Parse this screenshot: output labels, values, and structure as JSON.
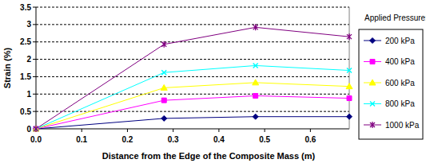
{
  "chart_data": {
    "type": "line",
    "legend_title": "Applied Pressure:",
    "xlabel": "Distance from the Edge of the Composite Mass (m)",
    "ylabel": "Strain (%)",
    "x": [
      0,
      0.28,
      0.48,
      0.685
    ],
    "series": [
      {
        "name": "200 kPa",
        "color": "#000080",
        "marker": "diamond",
        "line_style": "solid",
        "values": [
          0,
          0.3,
          0.35,
          0.35
        ]
      },
      {
        "name": "400 kPa",
        "color": "#ff00ff",
        "marker": "square",
        "line_style": "solid",
        "values": [
          0,
          0.82,
          0.95,
          0.88
        ]
      },
      {
        "name": "600 kPa",
        "color": "#ffff00",
        "marker": "triangle",
        "line_style": "solid",
        "values": [
          0,
          1.18,
          1.33,
          1.22
        ]
      },
      {
        "name": "800 kPa",
        "color": "#00ffff",
        "marker": "x",
        "line_style": "solid",
        "values": [
          0,
          1.62,
          1.82,
          1.68
        ]
      },
      {
        "name": "1000 kPa",
        "color": "#800080",
        "marker": "star",
        "line_style": "solid",
        "values": [
          0,
          2.43,
          2.92,
          2.65
        ]
      }
    ],
    "xlim": [
      0,
      0.685
    ],
    "xticks": [
      {
        "value": 0,
        "label": "0.0"
      },
      0.1,
      0.2,
      0.3,
      0.4,
      0.5,
      0.6
    ],
    "ylim": [
      0,
      3.5
    ],
    "yticks": [
      0,
      0.5,
      1,
      1.5,
      2,
      2.5,
      3,
      3.5
    ],
    "grid": true,
    "legend": "right"
  }
}
